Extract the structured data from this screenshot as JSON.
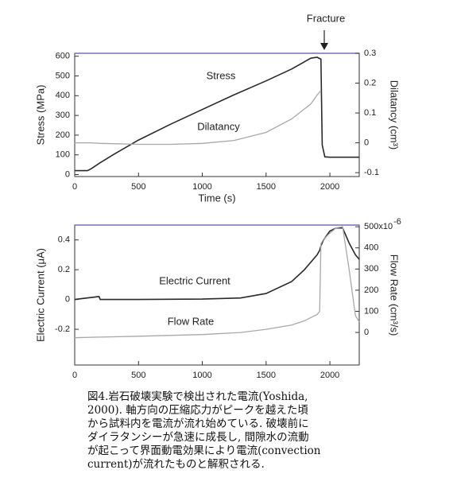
{
  "annotation": "Fracture",
  "chart_data": [
    {
      "type": "line",
      "x_label": "Time (s)",
      "y_label": "Stress (MPa)",
      "y2_label": "Dilatancy (cm³)",
      "x": [
        0,
        100,
        130,
        200,
        300,
        500,
        750,
        1000,
        1250,
        1500,
        1700,
        1850,
        1900,
        1930,
        1940,
        1960,
        2000,
        2230
      ],
      "xlim": [
        0,
        2230
      ],
      "xticks": [
        0,
        500,
        1000,
        1500,
        2000
      ],
      "ylim": [
        -10,
        615
      ],
      "yticks": [
        0,
        100,
        200,
        300,
        400,
        500,
        600
      ],
      "y2lim": [
        -0.113,
        0.3
      ],
      "y2ticks": [
        -0.1,
        0.0,
        0.1,
        0.2,
        0.3
      ],
      "series": [
        {
          "name": "Stress",
          "color": "#2a2a2a",
          "values": [
            20,
            20,
            30,
            60,
            100,
            175,
            255,
            330,
            405,
            475,
            535,
            590,
            595,
            585,
            150,
            90,
            88,
            88
          ]
        },
        {
          "name": "Dilatancy",
          "color": "#a8a8a8",
          "axis": "y2",
          "values": [
            0,
            0,
            0,
            -0.002,
            -0.003,
            -0.005,
            -0.005,
            -0.002,
            0.008,
            0.035,
            0.08,
            0.13,
            0.16,
            0.175,
            null,
            null,
            null,
            null
          ]
        }
      ]
    },
    {
      "type": "line",
      "x_label": "Time (s)",
      "y_label": "Electric Current (μA)",
      "y2_label": "Flow Rate (cm³/s)",
      "x": [
        0,
        190,
        200,
        500,
        1000,
        1300,
        1500,
        1700,
        1800,
        1900,
        1920,
        1930,
        1950,
        2000,
        2050,
        2100,
        2150,
        2200,
        2230
      ],
      "xlim": [
        0,
        2230
      ],
      "xticks": [
        0,
        500,
        1000,
        1500,
        2000
      ],
      "ylim": [
        -0.44,
        0.5
      ],
      "yticks": [
        -0.2,
        0.0,
        0.2,
        0.4
      ],
      "y2lim": [
        -154,
        508
      ],
      "y2ticks": [
        0,
        100,
        200,
        300,
        400,
        {
          "value": 500,
          "label": "500x10"
        }
      ],
      "y2_exponent": "-6",
      "series": [
        {
          "name": "Electric Current",
          "color": "#2a2a2a",
          "values": [
            0,
            0.02,
            0,
            0,
            0.003,
            0.01,
            0.04,
            0.12,
            0.2,
            0.3,
            0.33,
            0.36,
            0.4,
            0.46,
            0.48,
            0.48,
            0.38,
            0.3,
            0.27
          ]
        },
        {
          "name": "Flow Rate",
          "color": "#a8a8a8",
          "axis": "y2",
          "values": [
            -25,
            -22,
            -22,
            -18,
            -10,
            0,
            15,
            35,
            55,
            85,
            100,
            420,
            440,
            470,
            495,
            500,
            300,
            80,
            50
          ]
        }
      ]
    }
  ],
  "caption": [
    "図4.岩石破壊実験で検出された電流(Yoshida,",
    "2000). 軸方向の圧縮応力がピークを越えた頃",
    "から試料内を電流が流れ始めている. 破壊前に",
    "ダイラタンシーが急速に成長し, 間隙水の流動",
    "が起こって界面動電効果により電流(convection",
    "current)が流れたものと解釈される."
  ]
}
